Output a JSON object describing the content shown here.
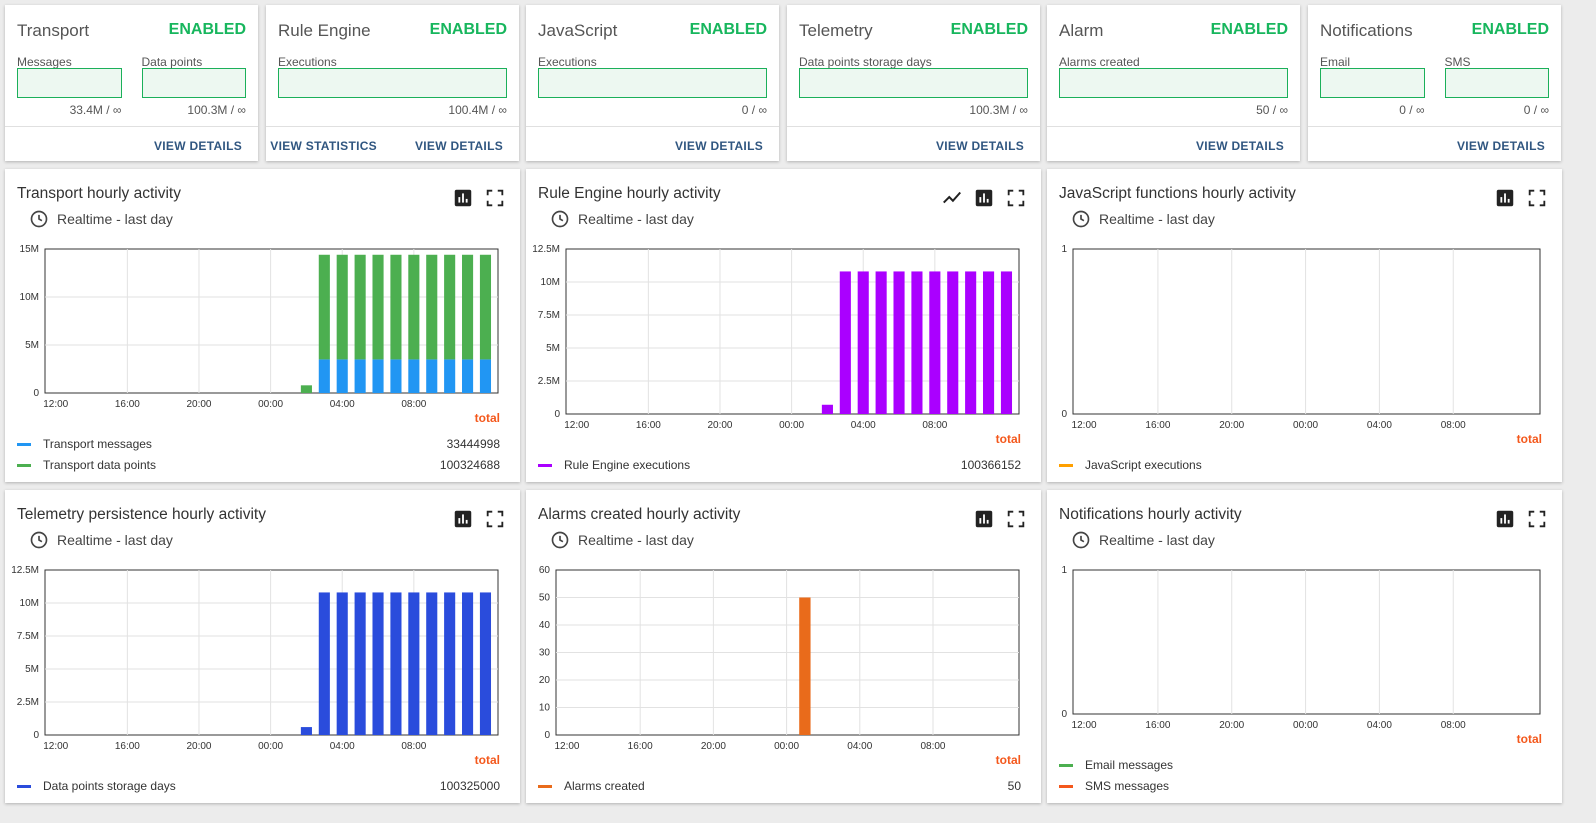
{
  "stats": [
    {
      "title": "Transport",
      "status": "ENABLED",
      "fields": [
        {
          "label": "Messages",
          "value": "33.4M / ∞"
        },
        {
          "label": "Data points",
          "value": "100.3M / ∞"
        }
      ],
      "links": [
        "VIEW DETAILS"
      ]
    },
    {
      "title": "Rule Engine",
      "status": "ENABLED",
      "fields": [
        {
          "label": "Executions",
          "value": "100.4M / ∞"
        }
      ],
      "links": [
        "VIEW STATISTICS",
        "VIEW DETAILS"
      ]
    },
    {
      "title": "JavaScript",
      "status": "ENABLED",
      "fields": [
        {
          "label": "Executions",
          "value": "0 / ∞"
        }
      ],
      "links": [
        "VIEW DETAILS"
      ]
    },
    {
      "title": "Telemetry",
      "status": "ENABLED",
      "fields": [
        {
          "label": "Data points storage days",
          "value": "100.3M / ∞"
        }
      ],
      "links": [
        "VIEW DETAILS"
      ]
    },
    {
      "title": "Alarm",
      "status": "ENABLED",
      "fields": [
        {
          "label": "Alarms created",
          "value": "50 / ∞"
        }
      ],
      "links": [
        "VIEW DETAILS"
      ]
    },
    {
      "title": "Notifications",
      "status": "ENABLED",
      "fields": [
        {
          "label": "Email",
          "value": "0 / ∞"
        },
        {
          "label": "SMS",
          "value": "0 / ∞"
        }
      ],
      "links": [
        "VIEW DETAILS"
      ]
    }
  ],
  "time_label": "Realtime - last day",
  "total_label": "total",
  "colors": {
    "enabled": "#17b65d",
    "link": "#305680",
    "total": "#f4581c"
  },
  "charts": [
    {
      "title": "Transport hourly activity",
      "icons": [
        "bar-chart-icon",
        "fullscreen-icon"
      ],
      "chart_data": {
        "type": "bar",
        "stacked": true,
        "x_ticks": [
          "12:00",
          "16:00",
          "20:00",
          "00:00",
          "04:00",
          "08:00"
        ],
        "y_ticks": [
          "0",
          "5M",
          "10M",
          "15M"
        ],
        "ylim": [
          0,
          15000000
        ],
        "x_hours": [
          0,
          1,
          2,
          3,
          4,
          5,
          6,
          7,
          8,
          9,
          10,
          11,
          12,
          13,
          14,
          15,
          16,
          17,
          18,
          19,
          20,
          21,
          22,
          23,
          24
        ],
        "series": [
          {
            "name": "Transport messages",
            "color": "#2196f3",
            "values": [
              0,
              0,
              0,
              0,
              0,
              0,
              0,
              0,
              0,
              0,
              0,
              0,
              0,
              0,
              0,
              3500000,
              3500000,
              3500000,
              3500000,
              3500000,
              3500000,
              3500000,
              3500000,
              3500000,
              3500000
            ]
          },
          {
            "name": "Transport data points",
            "color": "#4caf50",
            "values": [
              0,
              0,
              0,
              0,
              0,
              0,
              0,
              0,
              0,
              0,
              0,
              0,
              0,
              0,
              800000,
              10900000,
              10900000,
              10900000,
              10900000,
              10900000,
              10900000,
              10900000,
              10900000,
              10900000,
              10900000
            ]
          }
        ],
        "legend": [
          {
            "name": "Transport messages",
            "color": "#2196f3",
            "total": "33444998"
          },
          {
            "name": "Transport data points",
            "color": "#4caf50",
            "total": "100324688"
          }
        ]
      }
    },
    {
      "title": "Rule Engine hourly activity",
      "icons": [
        "line-chart-icon",
        "bar-chart-icon",
        "fullscreen-icon"
      ],
      "chart_data": {
        "type": "bar",
        "x_ticks": [
          "12:00",
          "16:00",
          "20:00",
          "00:00",
          "04:00",
          "08:00"
        ],
        "y_ticks": [
          "0",
          "2.5M",
          "5M",
          "7.5M",
          "10M",
          "12.5M"
        ],
        "ylim": [
          0,
          12500000
        ],
        "x_hours": [
          0,
          1,
          2,
          3,
          4,
          5,
          6,
          7,
          8,
          9,
          10,
          11,
          12,
          13,
          14,
          15,
          16,
          17,
          18,
          19,
          20,
          21,
          22,
          23,
          24
        ],
        "series": [
          {
            "name": "Rule Engine executions",
            "color": "#aa00ff",
            "values": [
              0,
              0,
              0,
              0,
              0,
              0,
              0,
              0,
              0,
              0,
              0,
              0,
              0,
              0,
              700000,
              10800000,
              10800000,
              10800000,
              10800000,
              10800000,
              10800000,
              10800000,
              10800000,
              10800000,
              10800000
            ]
          }
        ],
        "legend": [
          {
            "name": "Rule Engine executions",
            "color": "#aa00ff",
            "total": "100366152"
          }
        ]
      }
    },
    {
      "title": "JavaScript functions hourly activity",
      "icons": [
        "bar-chart-icon",
        "fullscreen-icon"
      ],
      "chart_data": {
        "type": "bar",
        "x_ticks": [
          "12:00",
          "16:00",
          "20:00",
          "00:00",
          "04:00",
          "08:00"
        ],
        "y_ticks": [
          "0",
          "1"
        ],
        "ylim": [
          0,
          1
        ],
        "x_hours": [],
        "series": [
          {
            "name": "JavaScript executions",
            "color": "#ffa000",
            "values": []
          }
        ],
        "legend": [
          {
            "name": "JavaScript executions",
            "color": "#ffa000",
            "total": ""
          }
        ]
      }
    },
    {
      "title": "Telemetry persistence hourly activity",
      "icons": [
        "bar-chart-icon",
        "fullscreen-icon"
      ],
      "chart_data": {
        "type": "bar",
        "x_ticks": [
          "12:00",
          "16:00",
          "20:00",
          "00:00",
          "04:00",
          "08:00"
        ],
        "y_ticks": [
          "0",
          "2.5M",
          "5M",
          "7.5M",
          "10M",
          "12.5M"
        ],
        "ylim": [
          0,
          12500000
        ],
        "x_hours": [
          0,
          1,
          2,
          3,
          4,
          5,
          6,
          7,
          8,
          9,
          10,
          11,
          12,
          13,
          14,
          15,
          16,
          17,
          18,
          19,
          20,
          21,
          22,
          23,
          24
        ],
        "series": [
          {
            "name": "Data points storage days",
            "color": "#2a4cdc",
            "values": [
              0,
              0,
              0,
              0,
              0,
              0,
              0,
              0,
              0,
              0,
              0,
              0,
              0,
              0,
              600000,
              10800000,
              10800000,
              10800000,
              10800000,
              10800000,
              10800000,
              10800000,
              10800000,
              10800000,
              10800000
            ]
          }
        ],
        "legend": [
          {
            "name": "Data points storage days",
            "color": "#2a4cdc",
            "total": "100325000"
          }
        ]
      }
    },
    {
      "title": "Alarms created hourly activity",
      "icons": [
        "bar-chart-icon",
        "fullscreen-icon"
      ],
      "chart_data": {
        "type": "bar",
        "x_ticks": [
          "12:00",
          "16:00",
          "20:00",
          "00:00",
          "04:00",
          "08:00"
        ],
        "y_ticks": [
          "0",
          "10",
          "20",
          "30",
          "40",
          "50",
          "60"
        ],
        "ylim": [
          0,
          60
        ],
        "x_hours": [
          13
        ],
        "series": [
          {
            "name": "Alarms created",
            "color": "#e96b1b",
            "values": [
              50
            ]
          }
        ],
        "legend": [
          {
            "name": "Alarms created",
            "color": "#e96b1b",
            "total": "50"
          }
        ]
      }
    },
    {
      "title": "Notifications hourly activity",
      "icons": [
        "bar-chart-icon",
        "fullscreen-icon"
      ],
      "chart_data": {
        "type": "bar",
        "x_ticks": [
          "12:00",
          "16:00",
          "20:00",
          "00:00",
          "04:00",
          "08:00"
        ],
        "y_ticks": [
          "0",
          "1"
        ],
        "ylim": [
          0,
          1
        ],
        "x_hours": [],
        "series": [
          {
            "name": "Email messages",
            "color": "#4caf50",
            "values": []
          },
          {
            "name": "SMS messages",
            "color": "#f4581c",
            "values": []
          }
        ],
        "legend": [
          {
            "name": "Email messages",
            "color": "#4caf50",
            "total": ""
          },
          {
            "name": "SMS messages",
            "color": "#f4581c",
            "total": ""
          }
        ]
      }
    }
  ]
}
